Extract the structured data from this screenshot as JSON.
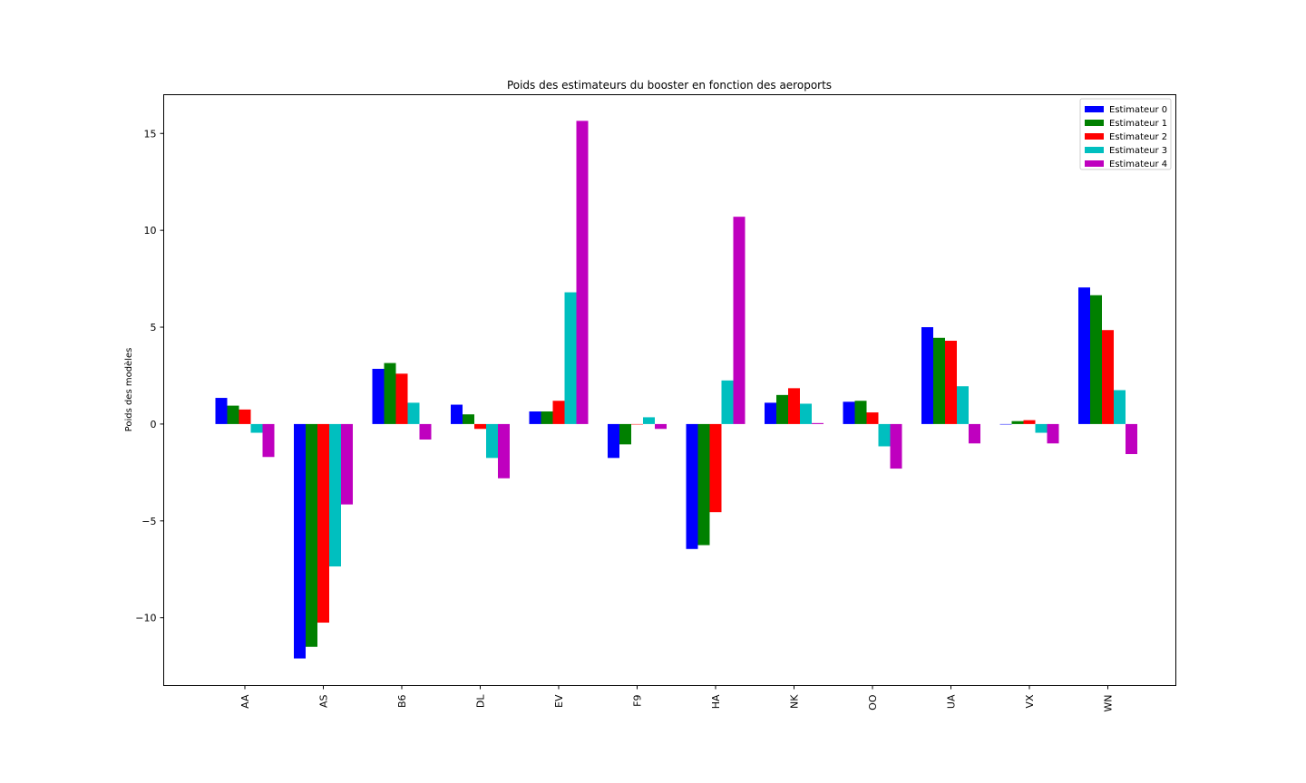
{
  "chart_data": {
    "type": "bar",
    "title": "Poids des estimateurs du booster en fonction des aeroports",
    "xlabel": "",
    "ylabel": "Poids des modèles",
    "ylim": [
      -13.5,
      17
    ],
    "yticks": [
      -10,
      -5,
      0,
      5,
      10,
      15
    ],
    "ytick_labels": [
      "−10",
      "−5",
      "0",
      "5",
      "10",
      "15"
    ],
    "grid": false,
    "legend_position": "top-right",
    "categories": [
      "AA",
      "AS",
      "B6",
      "DL",
      "EV",
      "F9",
      "HA",
      "NK",
      "OO",
      "UA",
      "VX",
      "WN"
    ],
    "series": [
      {
        "name": "Estimateur 0",
        "color": "#0000ff",
        "values": [
          1.35,
          -12.1,
          2.85,
          1.0,
          0.65,
          -1.75,
          -6.45,
          1.1,
          1.15,
          5.0,
          0.0,
          7.05
        ]
      },
      {
        "name": "Estimateur 1",
        "color": "#008000",
        "values": [
          0.95,
          -11.5,
          3.15,
          0.5,
          0.65,
          -1.05,
          -6.25,
          1.5,
          1.2,
          4.45,
          0.15,
          6.65
        ]
      },
      {
        "name": "Estimateur 2",
        "color": "#ff0000",
        "values": [
          0.75,
          -10.25,
          2.6,
          -0.25,
          1.2,
          0.0,
          -4.55,
          1.85,
          0.6,
          4.3,
          0.2,
          4.85
        ]
      },
      {
        "name": "Estimateur 3",
        "color": "#00bfbf",
        "values": [
          -0.45,
          -7.35,
          1.1,
          -1.75,
          6.8,
          0.35,
          2.25,
          1.05,
          -1.15,
          1.95,
          -0.45,
          1.75
        ]
      },
      {
        "name": "Estimateur 4",
        "color": "#bf00bf",
        "values": [
          -1.7,
          -4.15,
          -0.8,
          -2.8,
          15.65,
          -0.25,
          10.7,
          0.05,
          -2.3,
          -1.0,
          -1.0,
          -1.55
        ]
      }
    ]
  }
}
